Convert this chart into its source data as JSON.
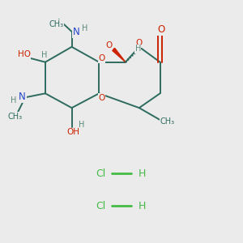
{
  "background_color": "#ebebeb",
  "bond_color": "#2d6b5e",
  "O_color": "#cc2200",
  "N_color": "#2244cc",
  "H_color": "#5a8a7a",
  "HCl_color": "#44bb44",
  "figsize": [
    3.0,
    3.0
  ],
  "dpi": 100,
  "xlim": [
    0,
    10
  ],
  "ylim": [
    0,
    10
  ]
}
